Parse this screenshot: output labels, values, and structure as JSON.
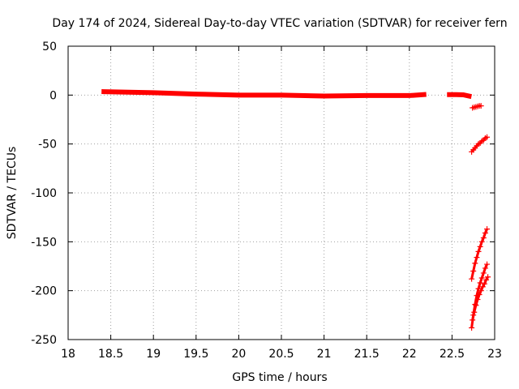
{
  "chart_data": {
    "type": "scatter",
    "title": "Day 174 of 2024, Sidereal Day-to-day VTEC variation (SDTVAR) for receiver fern",
    "xlabel": "GPS time / hours",
    "ylabel": "SDTVAR / TECUs",
    "xlim": [
      18,
      23
    ],
    "ylim": [
      -250,
      50
    ],
    "xticks": [
      18,
      18.5,
      19,
      19.5,
      20,
      20.5,
      21,
      21.5,
      22,
      22.5,
      23
    ],
    "xtick_labels": [
      "18",
      "18.5",
      "19",
      "19.5",
      "20",
      "20.5",
      "21",
      "21.5",
      "22",
      "22.5",
      "23"
    ],
    "yticks": [
      50,
      0,
      -50,
      -100,
      -150,
      -200,
      -250
    ],
    "ytick_labels": [
      "50",
      "0",
      "-50",
      "-100",
      "-150",
      "-200",
      "-250"
    ],
    "grid": true,
    "marker": "plus",
    "color": "#ff0000",
    "bands": [
      {
        "x": [
          18.42,
          19.0,
          19.5,
          20.0,
          20.5,
          21.0,
          21.5,
          22.0,
          22.17
        ],
        "y": [
          3.5,
          2.5,
          1.0,
          0.0,
          0.0,
          -1.0,
          -0.5,
          -0.5,
          0.5
        ],
        "thickness": 3.5
      },
      {
        "x": [
          22.47,
          22.55,
          22.63,
          22.7
        ],
        "y": [
          0.5,
          0.5,
          0.3,
          -1.0
        ],
        "thickness": 3.5
      }
    ],
    "series": [
      {
        "x": [
          22.74,
          22.76,
          22.78,
          22.8,
          22.82,
          22.84
        ],
        "y": [
          -13,
          -12.5,
          -12,
          -11.5,
          -11,
          -11
        ]
      },
      {
        "x": [
          22.73,
          22.75,
          22.77,
          22.79,
          22.81,
          22.83,
          22.85,
          22.87,
          22.89,
          22.91
        ],
        "y": [
          -58,
          -56,
          -54,
          -52,
          -50,
          -49,
          -47,
          -46,
          -44,
          -43
        ]
      },
      {
        "x": [
          22.73,
          22.75,
          22.77,
          22.79,
          22.81,
          22.83,
          22.85,
          22.87,
          22.89,
          22.91
        ],
        "y": [
          -188,
          -180,
          -172,
          -166,
          -160,
          -155,
          -150,
          -146,
          -141,
          -137
        ]
      },
      {
        "x": [
          22.73,
          22.75,
          22.77,
          22.79,
          22.81,
          22.83,
          22.85,
          22.87,
          22.89,
          22.91
        ],
        "y": [
          -238,
          -225,
          -214,
          -205,
          -198,
          -192,
          -187,
          -182,
          -177,
          -173
        ]
      },
      {
        "x": [
          22.74,
          22.76,
          22.78,
          22.8,
          22.82,
          22.84,
          22.86,
          22.88,
          22.9,
          22.92
        ],
        "y": [
          -230,
          -222,
          -215,
          -209,
          -204,
          -200,
          -196,
          -193,
          -189,
          -186
        ]
      }
    ]
  }
}
